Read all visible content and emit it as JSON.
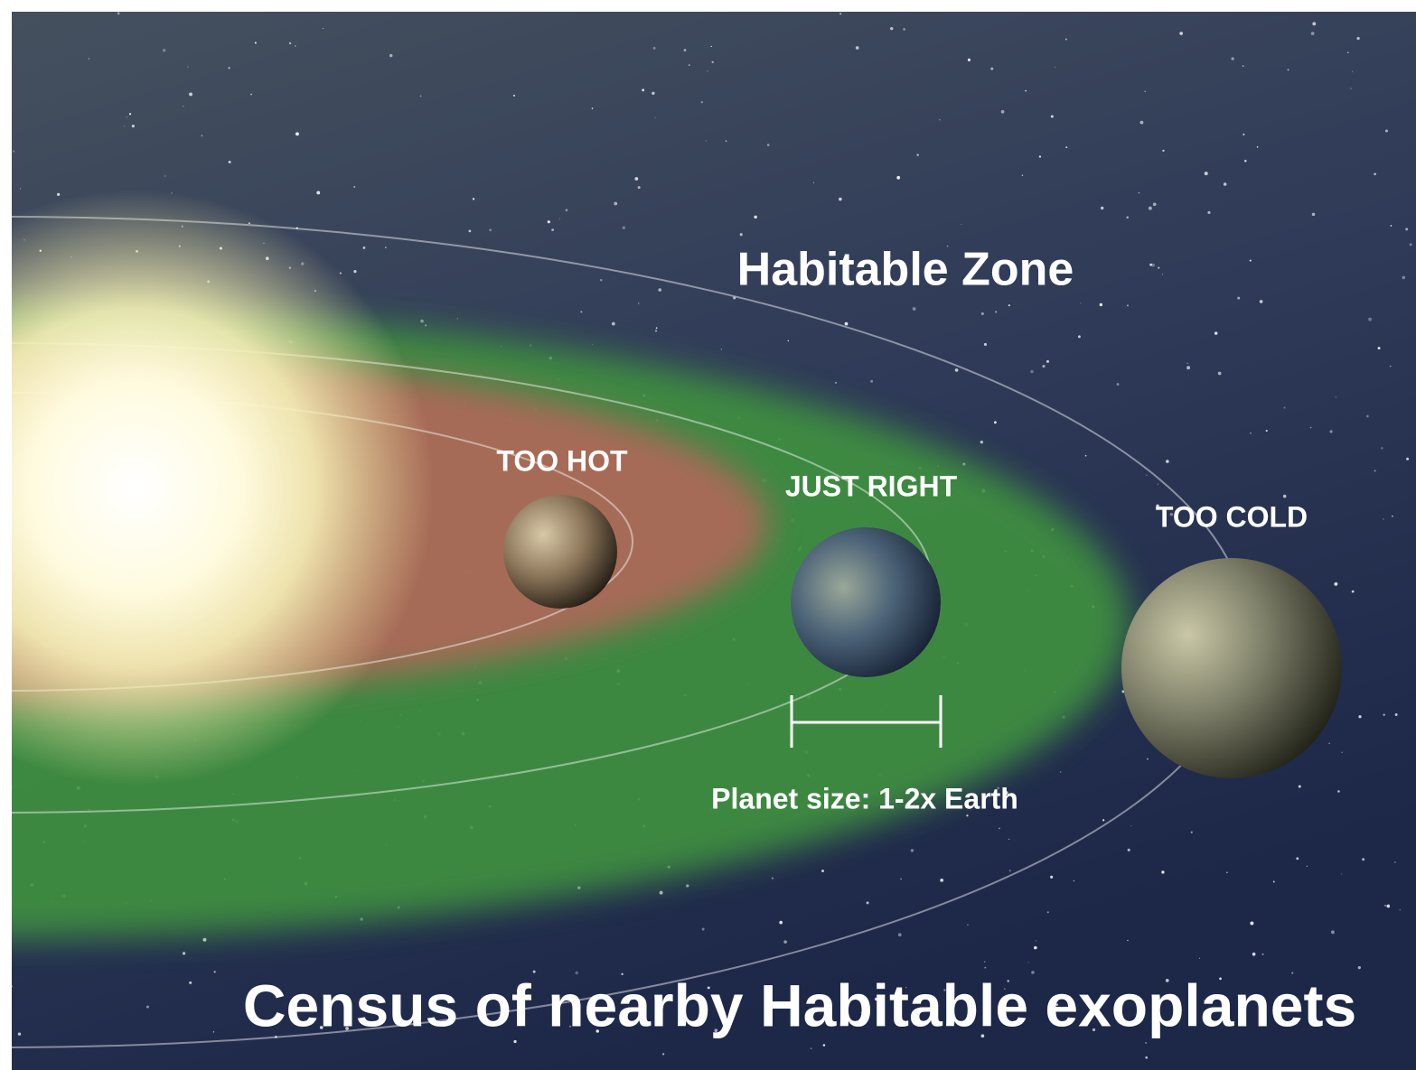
{
  "title": "Habitable Zone",
  "zones": [
    {
      "label": "TOO HOT"
    },
    {
      "label": "JUST RIGHT"
    },
    {
      "label": "TOO COLD"
    }
  ],
  "scale_label": "Planet size: 1-2x Earth",
  "caption": "Census of nearby Habitable exoplanets"
}
